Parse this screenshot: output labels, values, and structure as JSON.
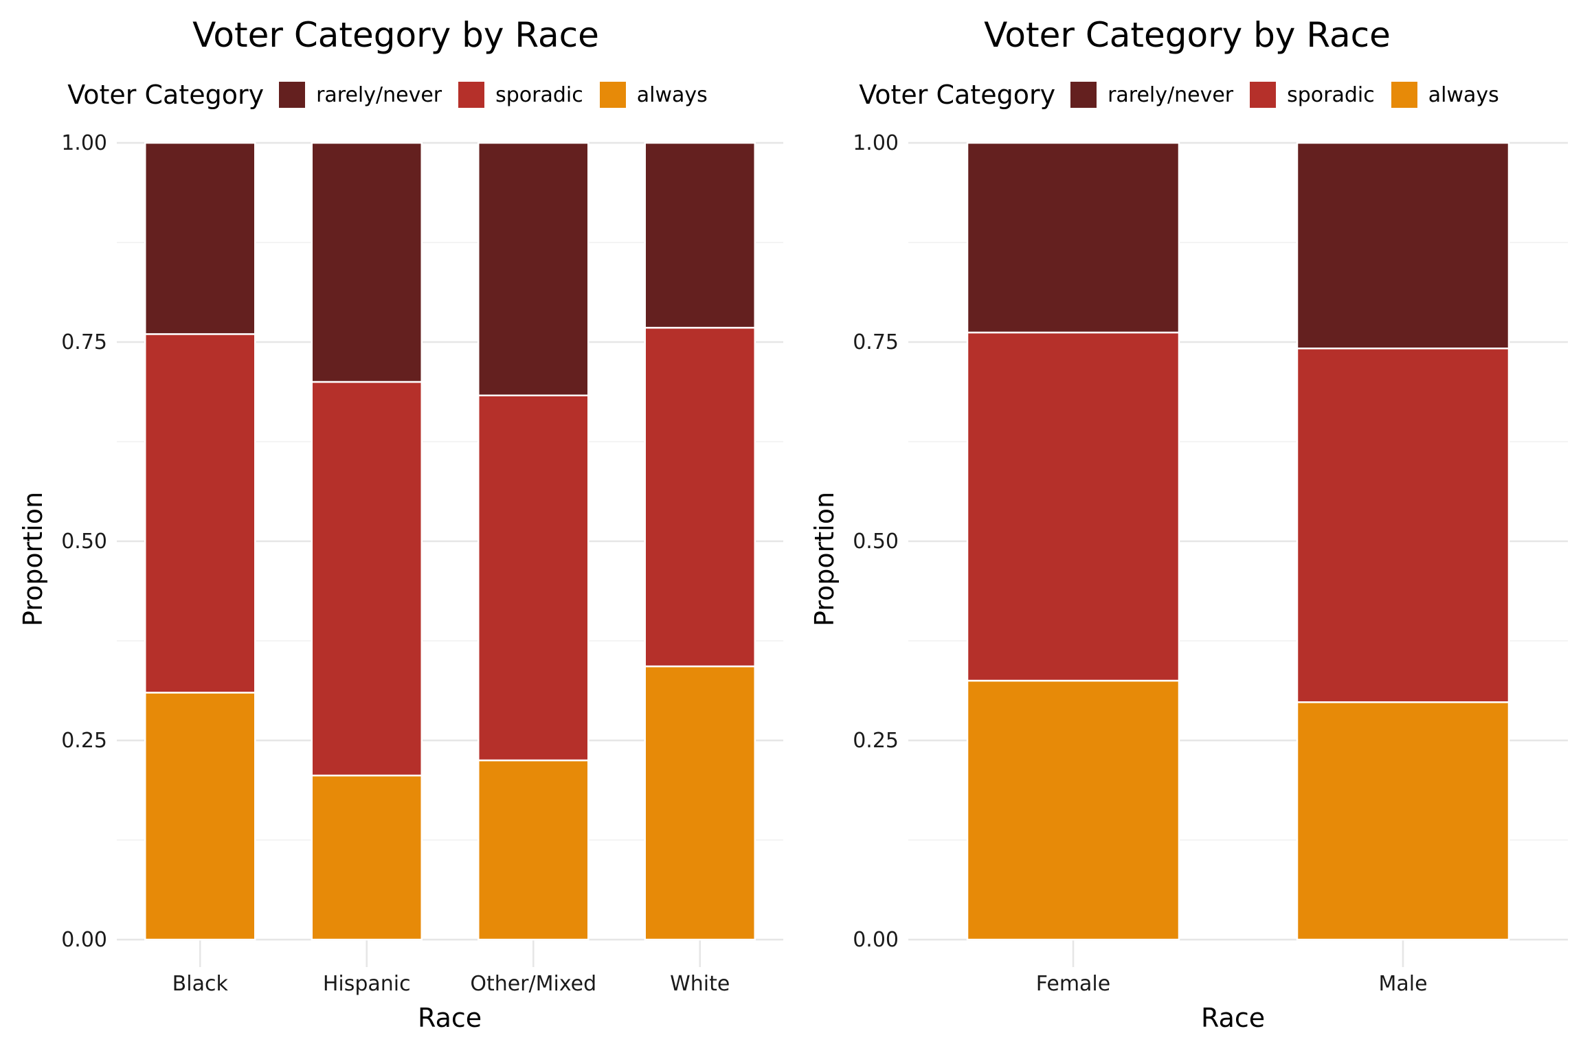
{
  "chart_data": [
    {
      "type": "bar",
      "stacked": true,
      "title": "Voter Category by Race",
      "xlabel": "Race",
      "ylabel": "Proportion",
      "ylim": [
        0,
        1
      ],
      "yticks": [
        "0.00",
        "0.25",
        "0.50",
        "0.75",
        "1.00"
      ],
      "grid": true,
      "legend_title": "Voter Category",
      "legend_position": "top",
      "categories": [
        "Black",
        "Hispanic",
        "Other/Mixed",
        "White"
      ],
      "series": [
        {
          "name": "always",
          "color": "#E78A08",
          "values": [
            0.31,
            0.206,
            0.225,
            0.343
          ]
        },
        {
          "name": "sporadic",
          "color": "#B5302A",
          "values": [
            0.45,
            0.494,
            0.458,
            0.425
          ]
        },
        {
          "name": "rarely/never",
          "color": "#64201F",
          "values": [
            0.24,
            0.3,
            0.317,
            0.232
          ]
        }
      ]
    },
    {
      "type": "bar",
      "stacked": true,
      "title": "Voter Category by Race",
      "xlabel": "Race",
      "ylabel": "Proportion",
      "ylim": [
        0,
        1
      ],
      "yticks": [
        "0.00",
        "0.25",
        "0.50",
        "0.75",
        "1.00"
      ],
      "grid": true,
      "legend_title": "Voter Category",
      "legend_position": "top",
      "categories": [
        "Female",
        "Male"
      ],
      "series": [
        {
          "name": "always",
          "color": "#E78A08",
          "values": [
            0.325,
            0.298
          ]
        },
        {
          "name": "sporadic",
          "color": "#B5302A",
          "values": [
            0.437,
            0.444
          ]
        },
        {
          "name": "rarely/never",
          "color": "#64201F",
          "values": [
            0.238,
            0.258
          ]
        }
      ]
    }
  ]
}
